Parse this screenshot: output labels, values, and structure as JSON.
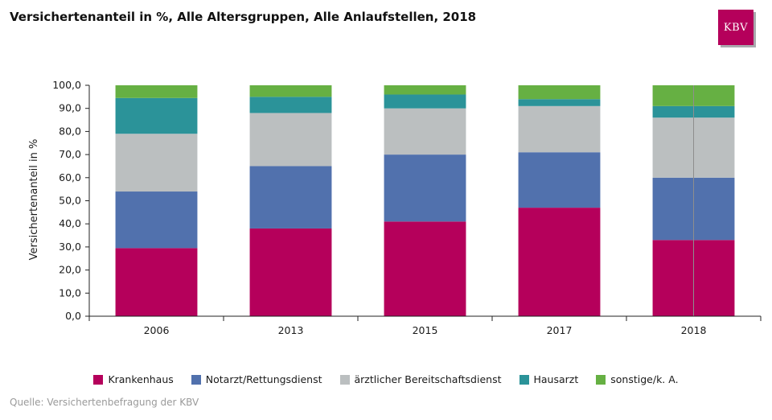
{
  "header": {
    "title": "Versichertenanteil in %, Alle Altersgruppen, Alle Anlaufstellen, 2018",
    "logo_text": "KBV"
  },
  "footer": {
    "source": "Quelle: Versichertenbefragung der KBV"
  },
  "colors": {
    "Krankenhaus": "#b5005b",
    "Notarzt/Rettungsdienst": "#5171ad",
    "ärztlicher Bereitschaftsdienst": "#bbbfc0",
    "Hausarzt": "#2b9399",
    "sonstige/k. A.": "#66b043"
  },
  "chart_data": {
    "type": "bar",
    "stacked": true,
    "title": "Versichertenanteil in %, Alle Altersgruppen, Alle Anlaufstellen, 2018",
    "xlabel": "",
    "ylabel": "Versichertenanteil in %",
    "ylim": [
      0,
      100
    ],
    "yticks": [
      "0,0",
      "10,0",
      "20,0",
      "30,0",
      "40,0",
      "50,0",
      "60,0",
      "70,0",
      "80,0",
      "90,0",
      "100,0"
    ],
    "categories": [
      "2006",
      "2013",
      "2015",
      "2017",
      "2018"
    ],
    "series": [
      {
        "name": "Krankenhaus",
        "values": [
          29.5,
          38,
          41,
          47,
          33
        ]
      },
      {
        "name": "Notarzt/Rettungsdienst",
        "values": [
          24.5,
          27,
          29,
          24,
          27
        ]
      },
      {
        "name": "ärztlicher Bereitschaftsdienst",
        "values": [
          25,
          23,
          20,
          20,
          26
        ]
      },
      {
        "name": "Hausarzt",
        "values": [
          15.5,
          7,
          6,
          3,
          5
        ]
      },
      {
        "name": "sonstige/k. A.",
        "values": [
          5.5,
          5,
          4,
          6,
          9
        ]
      }
    ],
    "legend_position": "bottom-center",
    "grid": false
  }
}
